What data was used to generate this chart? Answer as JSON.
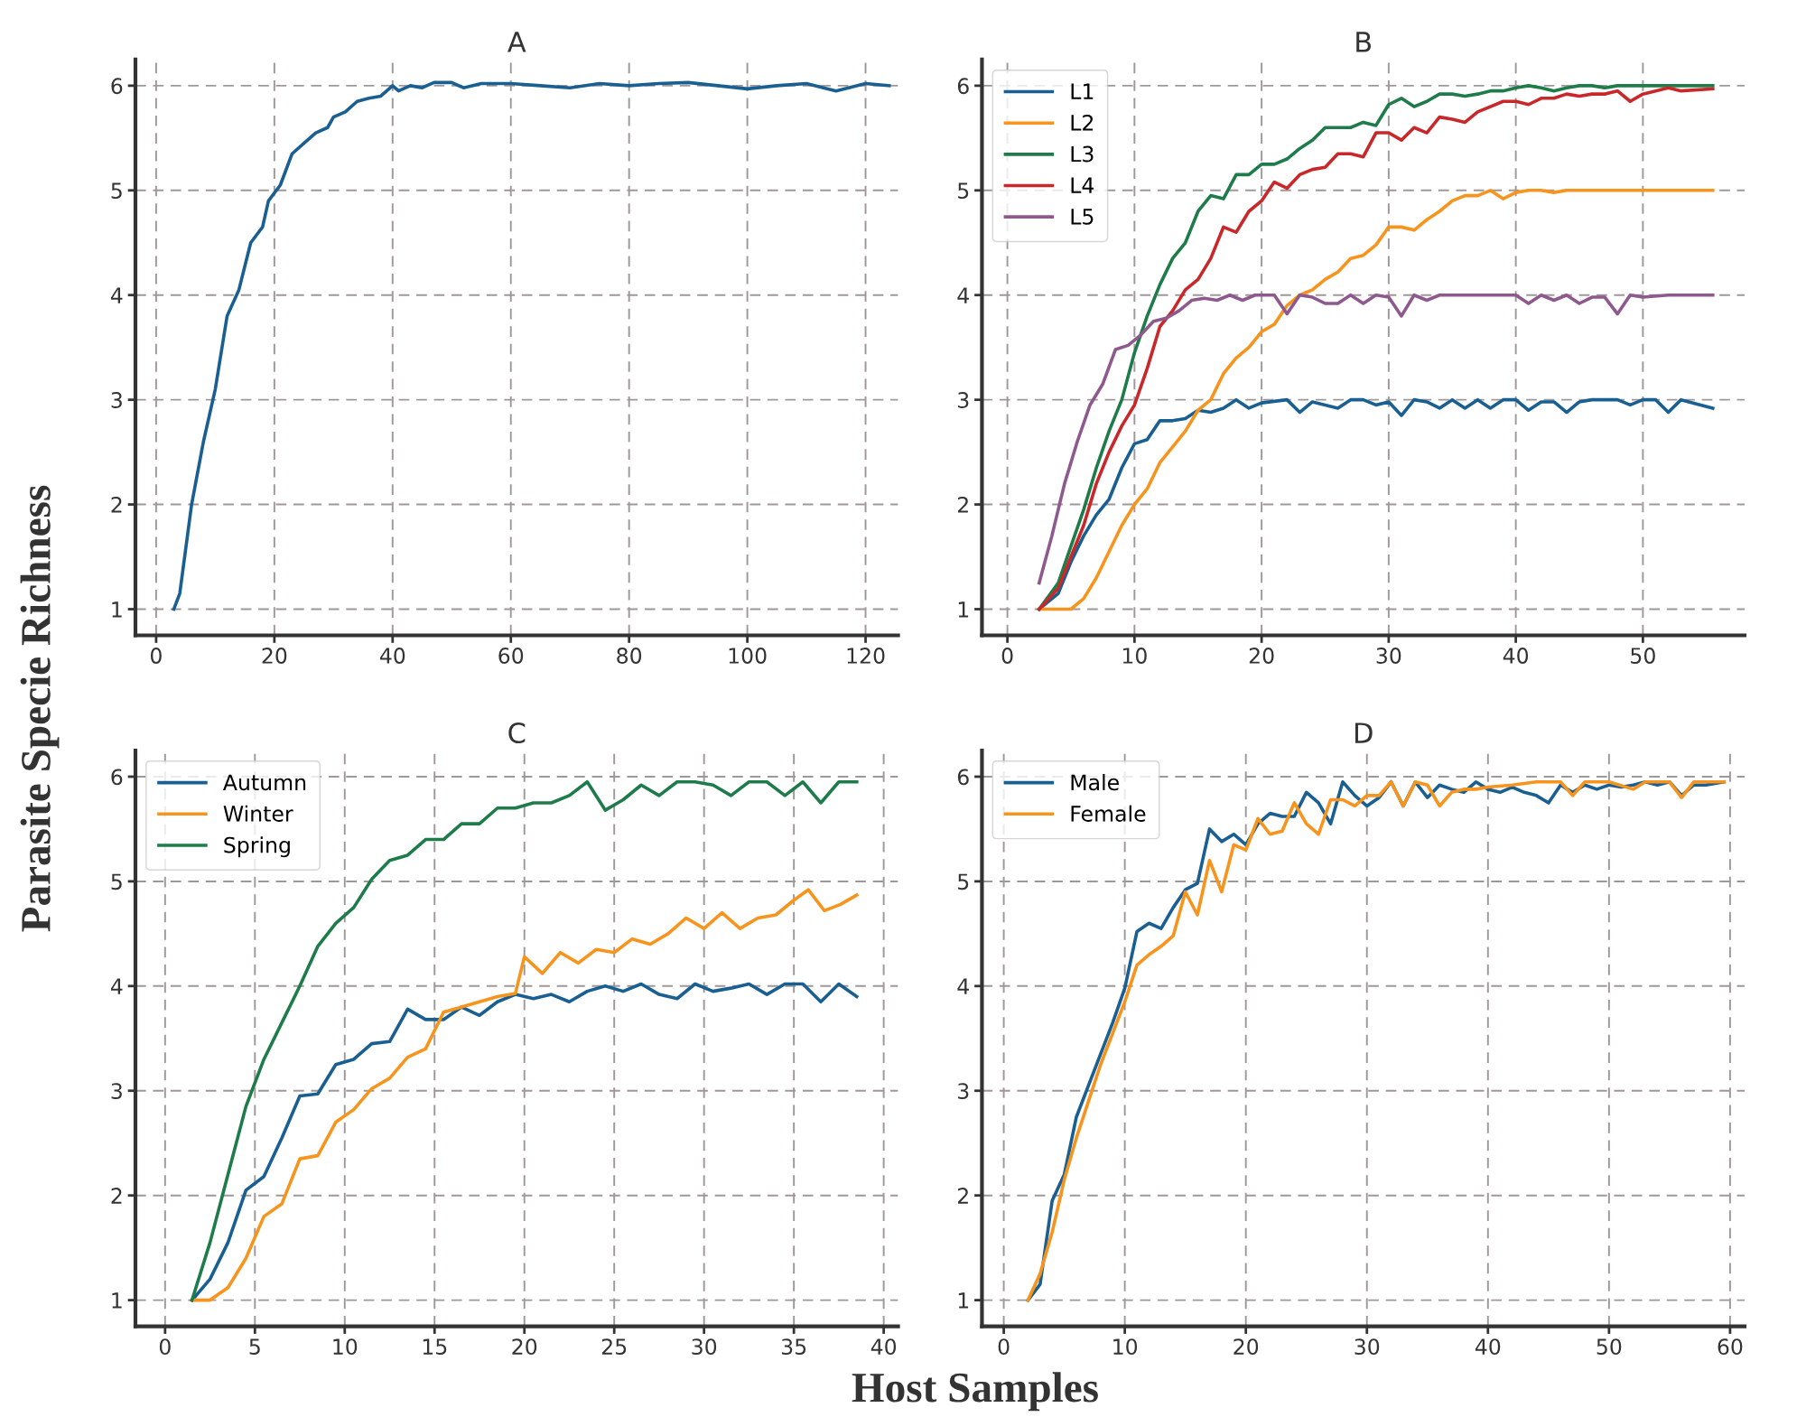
{
  "chart_data": [
    {
      "type": "line",
      "title": "A",
      "ylabel": "Parasite Specie Richness",
      "xlim": [
        -3.5,
        125.5
      ],
      "ylim": [
        0.75,
        6.25
      ],
      "xticks": [
        0,
        20,
        40,
        60,
        80,
        100,
        120
      ],
      "yticks": [
        1,
        2,
        3,
        4,
        5,
        6
      ],
      "grid": true,
      "legend": false,
      "marker": "none",
      "line_style": "solid",
      "series": [
        {
          "color": "#1a5f91",
          "x": [
            3,
            4,
            6,
            8,
            10,
            12,
            14,
            16,
            18,
            19,
            21,
            23,
            25,
            27,
            29,
            30,
            32,
            34,
            36,
            38,
            40,
            41,
            43,
            45,
            47,
            50,
            52,
            55,
            60,
            65,
            70,
            75,
            80,
            85,
            90,
            95,
            100,
            105,
            110,
            115,
            120,
            124
          ],
          "values": [
            1,
            1.15,
            2.0,
            2.6,
            3.1,
            3.8,
            4.05,
            4.5,
            4.65,
            4.9,
            5.05,
            5.35,
            5.45,
            5.55,
            5.6,
            5.7,
            5.75,
            5.85,
            5.88,
            5.9,
            6.0,
            5.95,
            6.0,
            5.98,
            6.03,
            6.03,
            5.98,
            6.02,
            6.02,
            6.0,
            5.98,
            6.02,
            6.0,
            6.02,
            6.03,
            6.0,
            5.97,
            6.0,
            6.02,
            5.95,
            6.02,
            6.0
          ]
        }
      ]
    },
    {
      "type": "line",
      "title": "B",
      "xlim": [
        -2,
        58
      ],
      "ylim": [
        0.75,
        6.25
      ],
      "xticks": [
        0,
        10,
        20,
        30,
        40,
        50
      ],
      "yticks": [
        1,
        2,
        3,
        4,
        5,
        6
      ],
      "grid": true,
      "legend": "top left",
      "marker": "none",
      "line_style": "solid",
      "series": [
        {
          "name": "L1",
          "color": "#1a5f91",
          "x": [
            2.5,
            4,
            5,
            6,
            7,
            8,
            9,
            10,
            11,
            12,
            13,
            14,
            15,
            16,
            17,
            18,
            19,
            20,
            22,
            23,
            24,
            25,
            26,
            27,
            28,
            29,
            30,
            31,
            32,
            33,
            34,
            35,
            36,
            37,
            38,
            39,
            40,
            41,
            42,
            43,
            44,
            45,
            46,
            48,
            49,
            50,
            51,
            52,
            53,
            55.5
          ],
          "values": [
            1.0,
            1.15,
            1.45,
            1.7,
            1.9,
            2.05,
            2.35,
            2.58,
            2.62,
            2.8,
            2.8,
            2.82,
            2.9,
            2.88,
            2.92,
            3.0,
            2.92,
            2.97,
            3.0,
            2.88,
            2.98,
            2.95,
            2.92,
            3.0,
            3.0,
            2.95,
            2.98,
            2.85,
            3.0,
            2.98,
            2.92,
            3.0,
            2.92,
            3.0,
            2.92,
            3.0,
            3.0,
            2.9,
            2.98,
            2.98,
            2.88,
            2.98,
            3.0,
            3.0,
            2.95,
            3.0,
            3.0,
            2.88,
            3.0,
            2.92
          ]
        },
        {
          "name": "L2",
          "color": "#f7941d",
          "x": [
            2.5,
            5,
            6,
            7,
            8,
            9,
            10,
            11,
            12,
            13,
            14,
            15,
            16,
            17,
            18,
            19,
            20,
            21,
            22,
            23,
            24,
            25,
            26,
            27,
            28,
            29,
            30,
            31,
            32,
            33,
            34,
            35,
            36,
            37,
            38,
            39,
            40,
            41,
            42,
            43,
            44,
            55.5
          ],
          "values": [
            1.0,
            1.0,
            1.1,
            1.3,
            1.55,
            1.8,
            2.0,
            2.15,
            2.4,
            2.55,
            2.7,
            2.9,
            3.0,
            3.25,
            3.4,
            3.5,
            3.65,
            3.72,
            3.9,
            4.0,
            4.05,
            4.15,
            4.22,
            4.35,
            4.38,
            4.48,
            4.65,
            4.65,
            4.62,
            4.72,
            4.8,
            4.9,
            4.95,
            4.95,
            5.0,
            4.92,
            4.98,
            5.0,
            5.0,
            4.98,
            5.0,
            5.0
          ]
        },
        {
          "name": "L3",
          "color": "#1e7b4a",
          "x": [
            2.5,
            4,
            5,
            6,
            7,
            8,
            9,
            10,
            11,
            12,
            13,
            14,
            15,
            16,
            17,
            18,
            19,
            20,
            21,
            22,
            23,
            24,
            25,
            26,
            27,
            28,
            29,
            30,
            31,
            32,
            33,
            34,
            35,
            36,
            37,
            38,
            39,
            40,
            41,
            42,
            43,
            44,
            45,
            46,
            47,
            48,
            50,
            55.5
          ],
          "values": [
            1.0,
            1.25,
            1.6,
            1.95,
            2.35,
            2.7,
            3.0,
            3.45,
            3.8,
            4.1,
            4.35,
            4.5,
            4.8,
            4.95,
            4.92,
            5.15,
            5.15,
            5.25,
            5.25,
            5.3,
            5.4,
            5.48,
            5.6,
            5.6,
            5.6,
            5.65,
            5.62,
            5.82,
            5.88,
            5.8,
            5.85,
            5.92,
            5.92,
            5.9,
            5.92,
            5.95,
            5.95,
            5.98,
            6.0,
            5.98,
            5.95,
            5.98,
            6.0,
            6.0,
            5.98,
            6.0,
            6.0,
            6.0
          ]
        },
        {
          "name": "L4",
          "color": "#c8282a",
          "x": [
            2.5,
            4,
            5,
            6,
            7,
            8,
            9,
            10,
            11,
            12,
            13,
            14,
            15,
            16,
            17,
            18,
            19,
            20,
            21,
            22,
            23,
            24,
            25,
            26,
            27,
            28,
            29,
            30,
            31,
            32,
            33,
            34,
            35,
            36,
            37,
            38,
            39,
            40,
            41,
            42,
            43,
            44,
            45,
            46,
            47,
            48,
            49,
            50,
            51,
            52,
            53,
            55.5
          ],
          "values": [
            1.0,
            1.2,
            1.5,
            1.8,
            2.2,
            2.5,
            2.75,
            2.95,
            3.3,
            3.7,
            3.85,
            4.05,
            4.15,
            4.35,
            4.65,
            4.6,
            4.8,
            4.9,
            5.08,
            5.02,
            5.15,
            5.2,
            5.22,
            5.35,
            5.35,
            5.32,
            5.55,
            5.55,
            5.48,
            5.6,
            5.55,
            5.7,
            5.68,
            5.65,
            5.75,
            5.8,
            5.85,
            5.85,
            5.82,
            5.88,
            5.88,
            5.92,
            5.9,
            5.92,
            5.92,
            5.95,
            5.85,
            5.92,
            5.95,
            5.98,
            5.95,
            5.97
          ]
        },
        {
          "name": "L5",
          "color": "#8e5a8e",
          "x": [
            2.5,
            3.5,
            4.5,
            5.5,
            6.5,
            7.5,
            8.5,
            9.5,
            10.5,
            11.5,
            12.5,
            13.5,
            14.5,
            15.5,
            16.5,
            17.5,
            18.5,
            19.5,
            21,
            22,
            23,
            24,
            25,
            26,
            27,
            28,
            29,
            30,
            31,
            32,
            33,
            34,
            36,
            38,
            40,
            41,
            42,
            43,
            44,
            45,
            46,
            47,
            48,
            49,
            50,
            52,
            55.5
          ],
          "values": [
            1.25,
            1.7,
            2.2,
            2.6,
            2.95,
            3.15,
            3.48,
            3.52,
            3.62,
            3.75,
            3.78,
            3.85,
            3.95,
            3.97,
            3.95,
            4.0,
            3.95,
            4.0,
            4.0,
            3.82,
            4.0,
            3.98,
            3.92,
            3.92,
            4.0,
            3.92,
            4.0,
            3.98,
            3.8,
            4.0,
            3.95,
            4.0,
            4.0,
            4.0,
            4.0,
            3.92,
            4.0,
            3.95,
            4.0,
            3.92,
            3.98,
            3.98,
            3.82,
            4.0,
            3.98,
            4.0,
            4.0
          ]
        }
      ]
    },
    {
      "type": "line",
      "title": "C",
      "xlabel": "Host Samples",
      "xlim": [
        -1.65,
        40.8
      ],
      "ylim": [
        0.75,
        6.25
      ],
      "xticks": [
        0,
        5,
        10,
        15,
        20,
        25,
        30,
        35,
        40
      ],
      "yticks": [
        1,
        2,
        3,
        4,
        5,
        6
      ],
      "grid": true,
      "legend": "top left",
      "marker": "none",
      "line_style": "solid",
      "series": [
        {
          "name": "Autumn",
          "color": "#1a5f91",
          "x": [
            1.5,
            2.5,
            3.5,
            4.5,
            5.5,
            6.5,
            7.5,
            8.5,
            9.5,
            10.5,
            11.5,
            12.5,
            13.5,
            14.5,
            15.5,
            16.5,
            17.5,
            18.5,
            19.5,
            20.5,
            21.5,
            22.5,
            23.5,
            24.5,
            25.5,
            26.5,
            27.5,
            28.5,
            29.5,
            30.5,
            31.5,
            32.5,
            33.5,
            34.5,
            35.5,
            36.5,
            37.5,
            38.5
          ],
          "values": [
            1.0,
            1.2,
            1.55,
            2.05,
            2.18,
            2.55,
            2.95,
            2.97,
            3.25,
            3.3,
            3.45,
            3.47,
            3.78,
            3.68,
            3.68,
            3.8,
            3.72,
            3.85,
            3.92,
            3.88,
            3.92,
            3.85,
            3.95,
            4.0,
            3.95,
            4.02,
            3.92,
            3.88,
            4.02,
            3.95,
            3.98,
            4.02,
            3.92,
            4.02,
            4.02,
            3.85,
            4.02,
            3.9
          ]
        },
        {
          "name": "Winter",
          "color": "#f7941d",
          "x": [
            1.5,
            2.5,
            3.5,
            4.5,
            5.5,
            6.5,
            7.5,
            8.5,
            9.5,
            10.5,
            11.5,
            12.5,
            13.5,
            14.5,
            15.5,
            16.5,
            17.5,
            18.5,
            19.5,
            20,
            21,
            22,
            23,
            24,
            25,
            26,
            27,
            28,
            29,
            30,
            31,
            32,
            33,
            34,
            35,
            35.8,
            36.7,
            37.6,
            38.5
          ],
          "values": [
            1.0,
            1.0,
            1.12,
            1.4,
            1.8,
            1.92,
            2.35,
            2.38,
            2.7,
            2.82,
            3.02,
            3.12,
            3.32,
            3.4,
            3.75,
            3.8,
            3.85,
            3.9,
            3.93,
            4.28,
            4.12,
            4.32,
            4.22,
            4.35,
            4.32,
            4.45,
            4.4,
            4.5,
            4.65,
            4.55,
            4.7,
            4.55,
            4.65,
            4.68,
            4.82,
            4.92,
            4.72,
            4.78,
            4.87
          ]
        },
        {
          "name": "Spring",
          "color": "#1e7b4a",
          "x": [
            1.5,
            2.5,
            3.5,
            4.5,
            5.5,
            6.5,
            7.5,
            8.5,
            9.5,
            10.5,
            11.5,
            12.5,
            13.5,
            14.5,
            15.5,
            16.5,
            17.5,
            18.5,
            19.5,
            20.5,
            21.5,
            22.5,
            23.5,
            24.5,
            25.5,
            26.5,
            27.5,
            28.5,
            29.5,
            30.5,
            31.5,
            32.5,
            33.5,
            34.5,
            35.5,
            36.5,
            37.5,
            38.5
          ],
          "values": [
            1.0,
            1.55,
            2.2,
            2.85,
            3.3,
            3.65,
            4.0,
            4.38,
            4.6,
            4.75,
            5.02,
            5.2,
            5.25,
            5.4,
            5.4,
            5.55,
            5.55,
            5.7,
            5.7,
            5.75,
            5.75,
            5.82,
            5.95,
            5.68,
            5.78,
            5.92,
            5.82,
            5.95,
            5.95,
            5.92,
            5.82,
            5.95,
            5.95,
            5.82,
            5.95,
            5.75,
            5.95,
            5.95
          ]
        }
      ]
    },
    {
      "type": "line",
      "title": "D",
      "xlim": [
        -1.8,
        61.2
      ],
      "ylim": [
        0.75,
        6.25
      ],
      "xticks": [
        0,
        10,
        20,
        30,
        40,
        50,
        60
      ],
      "yticks": [
        1,
        2,
        3,
        4,
        5,
        6
      ],
      "grid": true,
      "legend": "top left",
      "marker": "none",
      "line_style": "solid",
      "series": [
        {
          "name": "Male",
          "color": "#1a5f91",
          "x": [
            2,
            3,
            4,
            5,
            6,
            7,
            8,
            9,
            10,
            11,
            12,
            13,
            14,
            15,
            16,
            17,
            18,
            19,
            20,
            21,
            22,
            23,
            24,
            25,
            26,
            27,
            28,
            29,
            30,
            31,
            32,
            33,
            34,
            35,
            36,
            37,
            38,
            39,
            40,
            41,
            42,
            43,
            44,
            45,
            46,
            47,
            48,
            49,
            50,
            51,
            52,
            53,
            54,
            55,
            56,
            57,
            58,
            59.5
          ],
          "values": [
            1.0,
            1.15,
            1.95,
            2.2,
            2.75,
            3.05,
            3.35,
            3.65,
            3.98,
            4.52,
            4.6,
            4.55,
            4.75,
            4.92,
            4.98,
            5.5,
            5.38,
            5.45,
            5.35,
            5.55,
            5.65,
            5.62,
            5.62,
            5.85,
            5.75,
            5.55,
            5.95,
            5.82,
            5.72,
            5.8,
            5.95,
            5.72,
            5.95,
            5.8,
            5.92,
            5.88,
            5.85,
            5.95,
            5.88,
            5.85,
            5.9,
            5.85,
            5.82,
            5.75,
            5.92,
            5.85,
            5.92,
            5.88,
            5.92,
            5.9,
            5.92,
            5.95,
            5.92,
            5.95,
            5.82,
            5.92,
            5.92,
            5.95
          ]
        },
        {
          "name": "Female",
          "color": "#f7941d",
          "x": [
            2,
            3,
            4,
            5,
            6,
            7,
            8,
            9,
            10,
            11,
            12,
            13,
            14,
            15,
            16,
            17,
            18,
            19,
            20,
            21,
            22,
            23,
            24,
            25,
            26,
            27,
            28,
            29,
            30,
            31,
            32,
            33,
            34,
            35,
            36,
            37,
            38,
            39,
            40,
            42,
            44,
            46,
            47,
            48,
            50,
            52,
            53,
            55,
            56,
            57,
            59.5
          ],
          "values": [
            1.0,
            1.25,
            1.65,
            2.15,
            2.55,
            2.9,
            3.25,
            3.55,
            3.85,
            4.2,
            4.3,
            4.38,
            4.48,
            4.9,
            4.68,
            5.2,
            4.9,
            5.35,
            5.3,
            5.6,
            5.45,
            5.48,
            5.75,
            5.55,
            5.45,
            5.78,
            5.78,
            5.72,
            5.82,
            5.82,
            5.95,
            5.72,
            5.95,
            5.92,
            5.72,
            5.85,
            5.88,
            5.88,
            5.9,
            5.92,
            5.95,
            5.95,
            5.82,
            5.95,
            5.95,
            5.88,
            5.95,
            5.95,
            5.8,
            5.95,
            5.95
          ]
        }
      ]
    }
  ]
}
